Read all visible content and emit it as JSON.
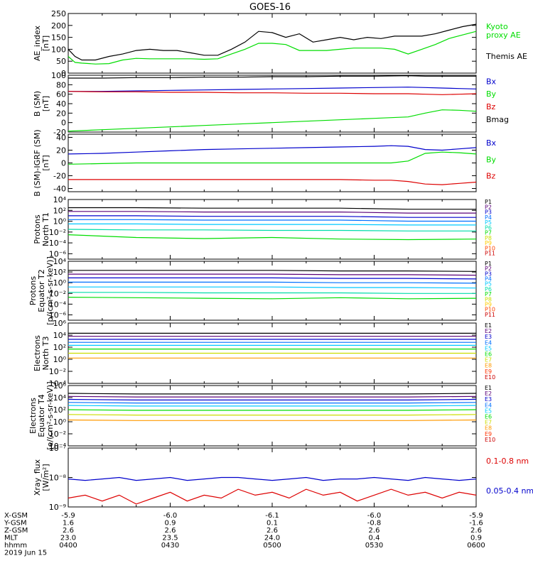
{
  "title": "GOES-16",
  "time_axis": {
    "hhmm": [
      "0400",
      "0430",
      "0500",
      "0530",
      "0600"
    ],
    "date": "2019 Jun 15",
    "rows": [
      {
        "label": "X-GSM",
        "values": [
          "-5.9",
          "-6.0",
          "-6.1",
          "-6.0",
          "-5.9"
        ]
      },
      {
        "label": "Y-GSM",
        "values": [
          "1.6",
          "0.9",
          "0.1",
          "-0.8",
          "-1.6"
        ]
      },
      {
        "label": "Z-GSM",
        "values": [
          "2.6",
          "2.6",
          "2.6",
          "2.6",
          "2.6"
        ]
      },
      {
        "label": "MLT",
        "values": [
          "23.0",
          "23.5",
          "24.0",
          "0.4",
          "0.9"
        ]
      },
      {
        "label": "hhmm",
        "values": [
          "0400",
          "0430",
          "0500",
          "0530",
          "0600"
        ]
      }
    ]
  },
  "chart_data": [
    {
      "type": "line",
      "ylabel": [
        "AE_index",
        "[nT]"
      ],
      "ylim": [
        0,
        250
      ],
      "yticks": [
        0,
        50,
        100,
        150,
        200,
        250
      ],
      "tick_labels": [
        "0",
        "50",
        "100",
        "150",
        "200",
        "250"
      ],
      "x": [
        0,
        2,
        4,
        8,
        12,
        16,
        20,
        24,
        28,
        32,
        36,
        40,
        44,
        48,
        52,
        56,
        60,
        64,
        68,
        72,
        76,
        80,
        84,
        88,
        92,
        96,
        100,
        104,
        108,
        112,
        116,
        120
      ],
      "series": [
        {
          "name": "Kyoto",
          "color": "#00dd00",
          "values": [
            70,
            45,
            42,
            38,
            40,
            55,
            62,
            60,
            60,
            60,
            60,
            58,
            60,
            80,
            100,
            125,
            125,
            120,
            95,
            95,
            95,
            100,
            105,
            105,
            105,
            100,
            80,
            100,
            120,
            145,
            160,
            175
          ]
        },
        {
          "name": "Themis AE",
          "color": "#000000",
          "values": [
            100,
            70,
            55,
            55,
            70,
            80,
            95,
            100,
            95,
            95,
            85,
            75,
            75,
            100,
            130,
            175,
            170,
            150,
            165,
            130,
            140,
            150,
            140,
            150,
            145,
            155,
            155,
            155,
            165,
            180,
            195,
            205
          ]
        }
      ],
      "legend": [
        "Kyoto",
        "proxy AE",
        "Themis AE"
      ]
    },
    {
      "type": "line",
      "ylabel": [
        "B (SM)",
        "[nT]"
      ],
      "ylim": [
        -20,
        100
      ],
      "yticks": [
        -20,
        0,
        20,
        40,
        60,
        80,
        100
      ],
      "tick_labels": [
        "-20",
        "0",
        "20",
        "40",
        "60",
        "80",
        "100"
      ],
      "x": [
        0,
        10,
        20,
        30,
        40,
        50,
        60,
        70,
        80,
        90,
        100,
        105,
        110,
        115,
        120
      ],
      "series": [
        {
          "name": "Bx",
          "color": "#0000cc",
          "values": [
            66,
            66,
            67,
            68,
            69,
            70,
            71,
            72,
            73,
            74,
            75,
            74,
            73,
            72,
            71
          ]
        },
        {
          "name": "By",
          "color": "#00dd00",
          "values": [
            -18,
            -15,
            -12,
            -9,
            -6,
            -3,
            0,
            3,
            6,
            9,
            12,
            20,
            27,
            26,
            24
          ]
        },
        {
          "name": "Bz",
          "color": "#dd0000",
          "values": [
            66,
            65,
            65,
            64,
            64,
            63,
            63,
            62,
            62,
            61,
            61,
            60,
            59,
            60,
            61
          ]
        },
        {
          "name": "Bmag",
          "color": "#000000",
          "values": [
            94,
            94,
            95,
            95,
            96,
            96,
            97,
            97,
            98,
            98,
            99,
            98,
            98,
            98,
            98
          ]
        }
      ],
      "legend": [
        "Bx",
        "By",
        "Bz",
        "Bmag"
      ]
    },
    {
      "type": "line",
      "ylabel": [
        "B (SM)-IGRF (SM)",
        "[nT]"
      ],
      "ylim": [
        -45,
        45
      ],
      "yticks": [
        -40,
        -20,
        0,
        20,
        40
      ],
      "tick_labels": [
        "-40",
        "-20",
        "0",
        "20",
        "40"
      ],
      "x": [
        0,
        10,
        20,
        30,
        40,
        50,
        60,
        70,
        80,
        90,
        95,
        100,
        105,
        110,
        115,
        120
      ],
      "series": [
        {
          "name": "Bx",
          "color": "#0000cc",
          "values": [
            14,
            15,
            17,
            19,
            21,
            22,
            23,
            24,
            25,
            26,
            27,
            26,
            21,
            20,
            22,
            24
          ]
        },
        {
          "name": "By",
          "color": "#00dd00",
          "values": [
            -2,
            -1,
            0,
            0,
            0,
            0,
            0,
            0,
            0,
            0,
            0,
            3,
            15,
            17,
            16,
            14
          ]
        },
        {
          "name": "Bz",
          "color": "#dd0000",
          "values": [
            -26,
            -26,
            -26,
            -26,
            -26,
            -26,
            -26,
            -26,
            -26,
            -27,
            -27,
            -29,
            -33,
            -34,
            -32,
            -30
          ]
        }
      ],
      "legend": [
        "Bx",
        "By",
        "Bz"
      ]
    },
    {
      "type": "line",
      "scale": "log",
      "ylabel": [
        "Protons",
        "North T1"
      ],
      "ylim": [
        -7,
        4
      ],
      "yticks": [
        -6,
        -4,
        -2,
        0,
        2,
        4
      ],
      "tick_labels": [
        "10⁻⁶",
        "10⁻⁴",
        "10⁻²",
        "10⁰",
        "10²",
        "10⁴"
      ],
      "x": [
        0,
        20,
        40,
        60,
        80,
        100,
        120
      ],
      "series": [
        {
          "name": "P1",
          "color": "#000000",
          "values": [
            2.5,
            2.5,
            2.4,
            2.4,
            2.4,
            2.2,
            2.2
          ]
        },
        {
          "name": "P2",
          "color": "#5a0078",
          "values": [
            1.8,
            1.8,
            1.7,
            1.7,
            1.7,
            1.5,
            1.5
          ]
        },
        {
          "name": "P3",
          "color": "#0000cc",
          "values": [
            1.0,
            1.0,
            0.9,
            0.9,
            0.9,
            0.7,
            0.7
          ]
        },
        {
          "name": "P4",
          "color": "#0070ff",
          "values": [
            0.3,
            0.3,
            0.2,
            0.2,
            0.2,
            0.0,
            0.0
          ]
        },
        {
          "name": "P5",
          "color": "#00c8ff",
          "values": [
            -0.5,
            -0.5,
            -0.6,
            -0.6,
            -0.6,
            -0.7,
            -0.7
          ]
        },
        {
          "name": "P6",
          "color": "#00ddaa",
          "values": [
            -1.5,
            -1.6,
            -1.6,
            -1.7,
            -1.7,
            -1.8,
            -1.8
          ]
        },
        {
          "name": "P7",
          "color": "#00dd00",
          "values": [
            -2.5,
            -3.0,
            -3.2,
            -3.0,
            -3.3,
            -3.4,
            -3.3
          ]
        }
      ],
      "legend": [
        "P1",
        "P2",
        "P3",
        "P4",
        "P5",
        "P6",
        "P7",
        "P8",
        "P9",
        "P10",
        "P11"
      ],
      "legend_colors": [
        "#000000",
        "#5a0078",
        "#0000cc",
        "#0070ff",
        "#00c8ff",
        "#00ddaa",
        "#00dd00",
        "#ccdd00",
        "#ffcc00",
        "#ff4400",
        "#cc0000"
      ]
    },
    {
      "type": "line",
      "scale": "log",
      "ylabel": [
        "Protons",
        "Equator T2",
        "[p/(cm²-s-sr-keV)]"
      ],
      "ylim": [
        -7,
        4
      ],
      "yticks": [
        -6,
        -4,
        -2,
        0,
        2,
        4
      ],
      "tick_labels": [
        "10⁻⁶",
        "10⁻⁴",
        "10⁻²",
        "10⁰",
        "10²",
        "10⁴"
      ],
      "x": [
        0,
        20,
        40,
        60,
        80,
        100,
        120
      ],
      "series": [
        {
          "name": "P1",
          "color": "#000000",
          "values": [
            2.3,
            2.3,
            2.3,
            2.3,
            2.2,
            2.2,
            2.1
          ]
        },
        {
          "name": "P2",
          "color": "#5a0078",
          "values": [
            1.6,
            1.6,
            1.6,
            1.6,
            1.5,
            1.5,
            1.4
          ]
        },
        {
          "name": "P3",
          "color": "#0000cc",
          "values": [
            0.9,
            0.9,
            0.9,
            0.9,
            0.8,
            0.8,
            0.7
          ]
        },
        {
          "name": "P4",
          "color": "#0070ff",
          "values": [
            0.1,
            0.1,
            0.1,
            0.1,
            0.0,
            0.0,
            -0.1
          ]
        },
        {
          "name": "P5",
          "color": "#00c8ff",
          "values": [
            -0.8,
            -0.8,
            -0.8,
            -0.8,
            -0.9,
            -0.9,
            -1.0
          ]
        },
        {
          "name": "P6",
          "color": "#00ddaa",
          "values": [
            -1.8,
            -1.8,
            -1.9,
            -1.9,
            -1.9,
            -2.0,
            -2.0
          ]
        },
        {
          "name": "P7",
          "color": "#00dd00",
          "values": [
            -2.7,
            -2.8,
            -2.9,
            -3.0,
            -2.8,
            -3.0,
            -2.9
          ]
        }
      ],
      "legend": [
        "P1",
        "P2",
        "P3",
        "P4",
        "P5",
        "P6",
        "P7",
        "P8",
        "P9",
        "P10",
        "P11"
      ],
      "legend_colors": [
        "#000000",
        "#5a0078",
        "#0000cc",
        "#0070ff",
        "#00c8ff",
        "#00ddaa",
        "#00dd00",
        "#ccdd00",
        "#ffcc00",
        "#ff4400",
        "#cc0000"
      ]
    },
    {
      "type": "line",
      "scale": "log",
      "ylabel": [
        "Electrons",
        "North T3"
      ],
      "ylim": [
        -4,
        6
      ],
      "yticks": [
        -4,
        -2,
        0,
        2,
        4,
        6
      ],
      "tick_labels": [
        "10⁻⁴",
        "10⁻²",
        "10⁰",
        "10²",
        "10⁴",
        "10⁶"
      ],
      "x": [
        0,
        20,
        40,
        60,
        80,
        100,
        120
      ],
      "series": [
        {
          "name": "E1",
          "color": "#000000",
          "values": [
            4.3,
            4.3,
            4.3,
            4.3,
            4.3,
            4.3,
            4.3
          ]
        },
        {
          "name": "E2",
          "color": "#5a0078",
          "values": [
            3.8,
            3.8,
            3.8,
            3.8,
            3.8,
            3.8,
            3.8
          ]
        },
        {
          "name": "E3",
          "color": "#0000cc",
          "values": [
            3.3,
            3.3,
            3.3,
            3.3,
            3.3,
            3.3,
            3.3
          ]
        },
        {
          "name": "E4",
          "color": "#0070ff",
          "values": [
            2.8,
            2.8,
            2.8,
            2.8,
            2.8,
            2.8,
            2.8
          ]
        },
        {
          "name": "E5",
          "color": "#00c8ff",
          "values": [
            2.3,
            2.3,
            2.3,
            2.3,
            2.3,
            2.3,
            2.3
          ]
        },
        {
          "name": "E6",
          "color": "#00dd00",
          "values": [
            1.7,
            1.7,
            1.7,
            1.7,
            1.7,
            1.7,
            1.7
          ]
        },
        {
          "name": "E7",
          "color": "#ccdd00",
          "values": [
            1.0,
            1.0,
            1.0,
            1.0,
            1.0,
            1.0,
            1.0
          ]
        },
        {
          "name": "E8",
          "color": "#ff9900",
          "values": [
            0.2,
            0.2,
            0.2,
            0.2,
            0.2,
            0.2,
            0.2
          ]
        }
      ],
      "legend": [
        "E1",
        "E2",
        "E3",
        "E4",
        "E5",
        "E6",
        "E7",
        "E8",
        "E9",
        "E10"
      ],
      "legend_colors": [
        "#000000",
        "#5a0078",
        "#0000cc",
        "#0070ff",
        "#00c8ff",
        "#00dd00",
        "#ccdd00",
        "#ff9900",
        "#ff3300",
        "#cc0000"
      ]
    },
    {
      "type": "line",
      "scale": "log",
      "ylabel": [
        "Electrons",
        "Equator T4",
        "[e/(cm²-s-sr-keV)]"
      ],
      "ylim": [
        -4,
        6
      ],
      "yticks": [
        -4,
        -2,
        0,
        2,
        4,
        6
      ],
      "tick_labels": [
        "10⁻⁴",
        "10⁻²",
        "10⁰",
        "10²",
        "10⁴",
        "10⁶"
      ],
      "x": [
        0,
        20,
        40,
        60,
        80,
        100,
        120
      ],
      "series": [
        {
          "name": "E1",
          "color": "#000000",
          "values": [
            4.7,
            4.6,
            4.6,
            4.6,
            4.6,
            4.6,
            4.7
          ]
        },
        {
          "name": "E2",
          "color": "#5a0078",
          "values": [
            4.2,
            4.1,
            4.1,
            4.1,
            4.1,
            4.1,
            4.2
          ]
        },
        {
          "name": "E3",
          "color": "#0000cc",
          "values": [
            3.7,
            3.6,
            3.6,
            3.6,
            3.6,
            3.6,
            3.7
          ]
        },
        {
          "name": "E4",
          "color": "#0070ff",
          "values": [
            3.2,
            3.1,
            3.1,
            3.1,
            3.1,
            3.1,
            3.2
          ]
        },
        {
          "name": "E5",
          "color": "#00c8ff",
          "values": [
            2.7,
            2.6,
            2.6,
            2.6,
            2.6,
            2.6,
            2.7
          ]
        },
        {
          "name": "E6",
          "color": "#00dd00",
          "values": [
            2.0,
            1.9,
            1.9,
            1.9,
            1.9,
            1.9,
            2.0
          ]
        },
        {
          "name": "E7",
          "color": "#ccdd00",
          "values": [
            1.2,
            1.1,
            1.1,
            1.1,
            1.1,
            1.1,
            1.2
          ]
        },
        {
          "name": "E8",
          "color": "#ff9900",
          "values": [
            0.3,
            0.2,
            0.2,
            0.2,
            0.2,
            0.2,
            0.3
          ]
        }
      ],
      "legend": [
        "E1",
        "E2",
        "E3",
        "E4",
        "E5",
        "E6",
        "E7",
        "E8",
        "E9",
        "E10"
      ],
      "legend_colors": [
        "#000000",
        "#5a0078",
        "#0000cc",
        "#0070ff",
        "#00c8ff",
        "#00dd00",
        "#ccdd00",
        "#ff9900",
        "#ff3300",
        "#cc0000"
      ]
    },
    {
      "type": "line",
      "scale": "log",
      "ylabel": [
        "Xray_flux",
        "[W/m²]"
      ],
      "ylim": [
        -9,
        -7
      ],
      "yticks": [
        -9,
        -8,
        -7
      ],
      "tick_labels": [
        "10⁻⁹",
        "10⁻⁸",
        "10⁻⁷"
      ],
      "x": [
        0,
        5,
        10,
        15,
        20,
        25,
        30,
        35,
        40,
        45,
        50,
        55,
        60,
        65,
        70,
        75,
        80,
        85,
        90,
        95,
        100,
        105,
        110,
        115,
        120
      ],
      "series": [
        {
          "name": "0.1-0.8 nm",
          "color": "#dd0000",
          "values": [
            -8.7,
            -8.6,
            -8.8,
            -8.6,
            -8.9,
            -8.7,
            -8.5,
            -8.8,
            -8.6,
            -8.7,
            -8.4,
            -8.6,
            -8.5,
            -8.7,
            -8.4,
            -8.6,
            -8.5,
            -8.8,
            -8.6,
            -8.4,
            -8.6,
            -8.5,
            -8.7,
            -8.5,
            -8.6
          ]
        },
        {
          "name": "0.05-0.4 nm",
          "color": "#0000cc",
          "values": [
            -8.05,
            -8.1,
            -8.05,
            -8.0,
            -8.1,
            -8.05,
            -8.0,
            -8.1,
            -8.05,
            -8.0,
            -8.0,
            -8.05,
            -8.1,
            -8.05,
            -8.0,
            -8.1,
            -8.05,
            -8.05,
            -8.0,
            -8.05,
            -8.1,
            -8.0,
            -8.05,
            -8.1,
            -8.05
          ]
        }
      ],
      "legend": [
        "0.1-0.8 nm",
        "0.05-0.4 nm"
      ],
      "legend_colors": [
        "#dd0000",
        "#0000cc"
      ]
    }
  ]
}
